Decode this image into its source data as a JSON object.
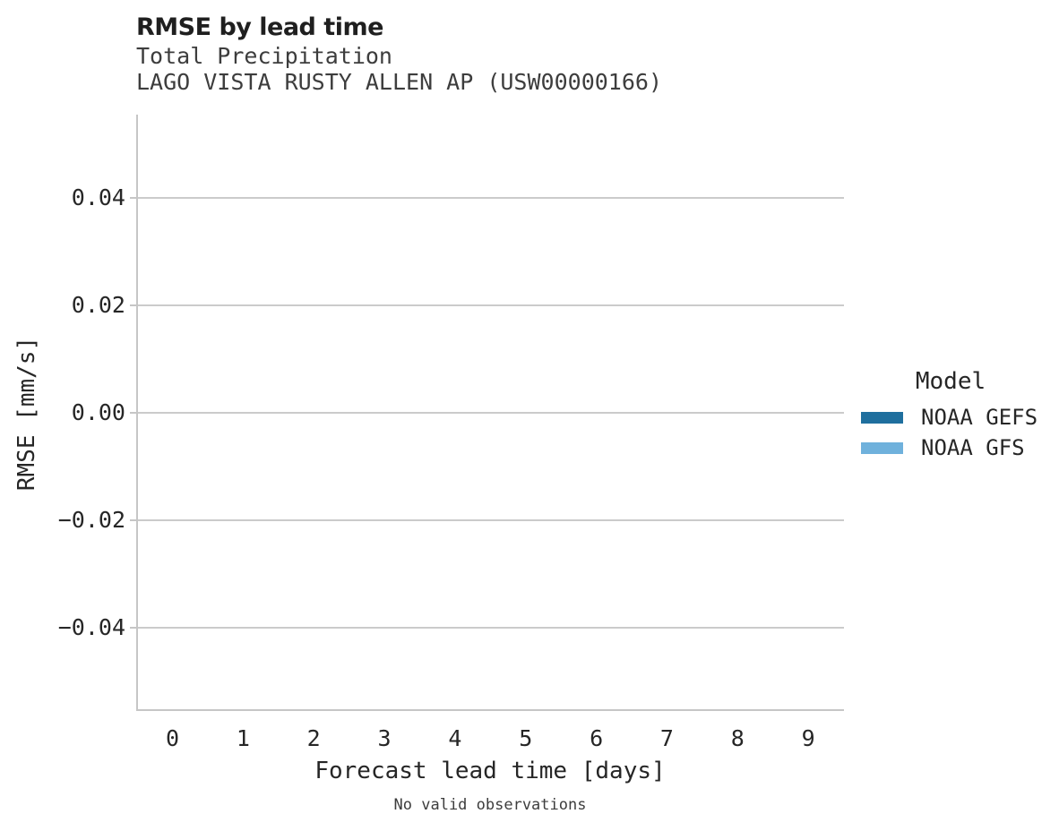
{
  "header": {
    "title": "RMSE by lead time",
    "subtitle_line1": "Total Precipitation",
    "subtitle_line2": "LAGO VISTA RUSTY ALLEN AP (USW00000166)"
  },
  "chart_data": {
    "type": "line",
    "title": "RMSE by lead time",
    "subtitle": [
      "Total Precipitation",
      "LAGO VISTA RUSTY ALLEN AP (USW00000166)"
    ],
    "xlabel": "Forecast lead time [days]",
    "ylabel": "RMSE [mm/s]",
    "x_ticks": [
      "0",
      "1",
      "2",
      "3",
      "4",
      "5",
      "6",
      "7",
      "8",
      "9"
    ],
    "y_ticks": [
      "0.04",
      "0.02",
      "0.00",
      "−0.02",
      "−0.04"
    ],
    "xlim": [
      -0.5,
      9.5
    ],
    "ylim": [
      -0.055,
      0.055
    ],
    "grid": "horizontal-only",
    "legend_position": "right-outside",
    "series": [
      {
        "name": "NOAA GEFS",
        "color": "#1f6f9e",
        "x": [],
        "values": []
      },
      {
        "name": "NOAA GFS",
        "color": "#6fb1dc",
        "x": [],
        "values": []
      }
    ],
    "annotation": "No valid observations"
  },
  "legend": {
    "title": "Model",
    "entries": [
      {
        "label": "NOAA GEFS",
        "color": "#1f6f9e"
      },
      {
        "label": "NOAA GFS",
        "color": "#6fb1dc"
      }
    ]
  },
  "footer": {
    "note": "No valid observations"
  },
  "colors": {
    "grid": "#cbcbcb",
    "spine": "#c6c6c6",
    "text": "#262626",
    "subtitle_text": "#3d3d3d"
  }
}
